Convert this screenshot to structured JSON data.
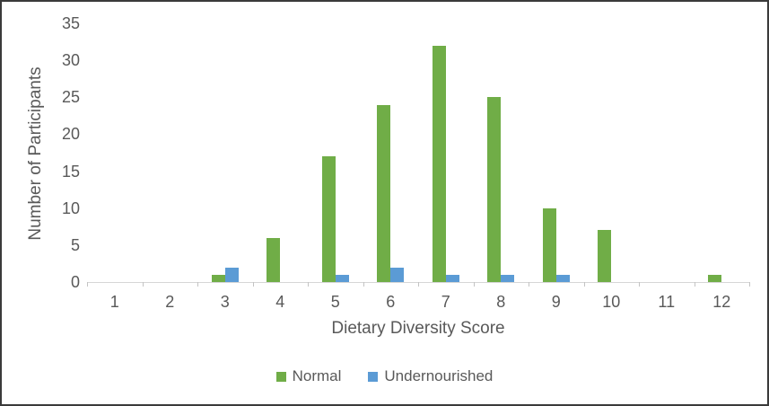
{
  "chart_data": {
    "type": "bar",
    "title": "",
    "xlabel": "Dietary Diversity Score",
    "ylabel": "Number of Participants",
    "categories": [
      "1",
      "2",
      "3",
      "4",
      "5",
      "6",
      "7",
      "8",
      "9",
      "10",
      "11",
      "12"
    ],
    "series": [
      {
        "name": "Normal",
        "color": "#70AD47",
        "values": [
          0,
          0,
          1,
          6,
          17,
          24,
          32,
          25,
          10,
          7,
          0,
          1
        ]
      },
      {
        "name": "Undernourished",
        "color": "#5B9BD5",
        "values": [
          0,
          0,
          2,
          0,
          1,
          2,
          1,
          1,
          1,
          0,
          0,
          0
        ]
      }
    ],
    "ylim": [
      0,
      35
    ],
    "yticks": [
      0,
      5,
      10,
      15,
      20,
      25,
      30,
      35
    ],
    "grid": false,
    "legend_position": "bottom",
    "axis_line_color": "#d6d6d6",
    "text_color": "#595959",
    "background": "#ffffff"
  }
}
